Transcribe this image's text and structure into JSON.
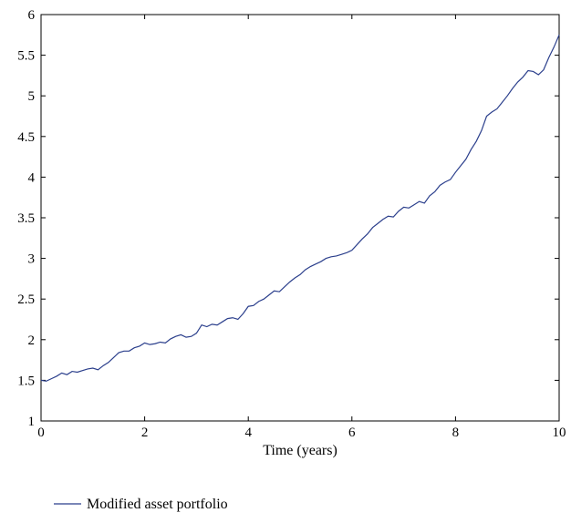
{
  "chart_data": {
    "type": "line",
    "xlabel": "Time (years)",
    "ylabel": "",
    "xlim": [
      0,
      10
    ],
    "ylim": [
      1,
      6
    ],
    "xticks": [
      "0",
      "2",
      "4",
      "6",
      "8",
      "10"
    ],
    "yticks": [
      "1",
      "1.5",
      "2",
      "2.5",
      "3",
      "3.5",
      "4",
      "4.5",
      "5",
      "5.5",
      "6"
    ],
    "grid": false,
    "legend_position": "bottom-left, below plot",
    "series": [
      {
        "name": "Modified asset portfolio",
        "color": "#2b3f8c",
        "x": [
          0,
          0.1,
          0.2,
          0.3,
          0.4,
          0.5,
          0.6,
          0.7,
          0.8,
          0.9,
          1.0,
          1.1,
          1.2,
          1.3,
          1.4,
          1.5,
          1.6,
          1.7,
          1.8,
          1.9,
          2.0,
          2.1,
          2.2,
          2.3,
          2.4,
          2.5,
          2.6,
          2.7,
          2.8,
          2.9,
          3.0,
          3.1,
          3.2,
          3.3,
          3.4,
          3.5,
          3.6,
          3.7,
          3.8,
          3.9,
          4.0,
          4.1,
          4.2,
          4.3,
          4.4,
          4.5,
          4.6,
          4.7,
          4.8,
          4.9,
          5.0,
          5.1,
          5.2,
          5.3,
          5.4,
          5.5,
          5.6,
          5.7,
          5.8,
          5.9,
          6.0,
          6.1,
          6.2,
          6.3,
          6.4,
          6.5,
          6.6,
          6.7,
          6.8,
          6.9,
          7.0,
          7.1,
          7.2,
          7.3,
          7.4,
          7.5,
          7.6,
          7.7,
          7.8,
          7.9,
          8.0,
          8.1,
          8.2,
          8.3,
          8.4,
          8.5,
          8.6,
          8.7,
          8.8,
          8.9,
          9.0,
          9.1,
          9.2,
          9.3,
          9.4,
          9.5,
          9.6,
          9.7,
          9.8,
          9.9,
          10.0
        ],
        "values": [
          1.5,
          1.49,
          1.52,
          1.55,
          1.59,
          1.57,
          1.61,
          1.6,
          1.62,
          1.64,
          1.65,
          1.63,
          1.68,
          1.72,
          1.78,
          1.84,
          1.86,
          1.86,
          1.9,
          1.92,
          1.96,
          1.94,
          1.95,
          1.97,
          1.96,
          2.01,
          2.04,
          2.06,
          2.03,
          2.04,
          2.08,
          2.18,
          2.16,
          2.19,
          2.18,
          2.22,
          2.26,
          2.27,
          2.25,
          2.32,
          2.41,
          2.42,
          2.47,
          2.5,
          2.55,
          2.6,
          2.59,
          2.65,
          2.71,
          2.76,
          2.8,
          2.86,
          2.9,
          2.93,
          2.96,
          3.0,
          3.02,
          3.03,
          3.05,
          3.07,
          3.1,
          3.17,
          3.24,
          3.3,
          3.38,
          3.43,
          3.48,
          3.52,
          3.51,
          3.58,
          3.63,
          3.62,
          3.66,
          3.7,
          3.68,
          3.77,
          3.82,
          3.9,
          3.94,
          3.97,
          4.06,
          4.14,
          4.22,
          4.34,
          4.44,
          4.57,
          4.75,
          4.8,
          4.84,
          4.92,
          5.0,
          5.09,
          5.17,
          5.23,
          5.31,
          5.3,
          5.26,
          5.32,
          5.47,
          5.6,
          5.75
        ]
      }
    ]
  }
}
